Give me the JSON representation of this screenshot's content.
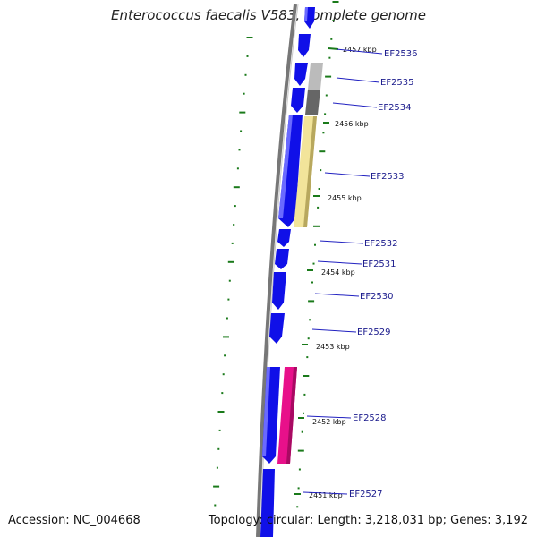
{
  "title": "Enterococcus faecalis V583, complete genome",
  "footer": {
    "accession": "Accession: NC_004668",
    "summary": "Topology: circular; Length: 3,218,031 bp; Genes: 3,192"
  },
  "colors": {
    "backbone": "#777777",
    "forward_gene": "#1010e8",
    "tick_green": "#1a7a1a",
    "label_line": "#2020c0",
    "pink_feature": "#e8108a",
    "yellow_feature": "#f2e49a",
    "gray_light": "#bbbbbb",
    "gray_dark": "#666666"
  },
  "kbp_labels": [
    "2457 kbp",
    "2456 kbp",
    "2455 kbp",
    "2454 kbp",
    "2453 kbp",
    "2452 kbp",
    "2451 kbp"
  ],
  "genes": [
    "EF2536",
    "EF2535",
    "EF2534",
    "EF2533",
    "EF2532",
    "EF2531",
    "EF2530",
    "EF2529",
    "EF2528",
    "EF2527"
  ]
}
